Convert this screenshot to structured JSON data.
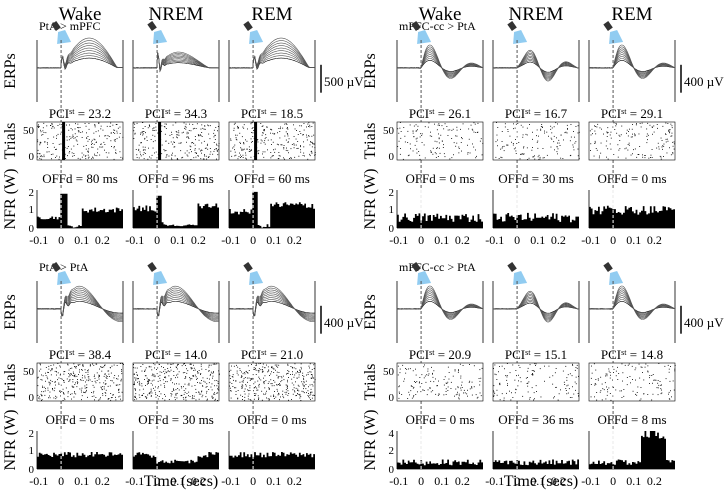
{
  "states": [
    "Wake",
    "NREM",
    "REM"
  ],
  "row_labels": {
    "erps": "ERPs",
    "trials": "Trials",
    "nfr": "NFR (W)"
  },
  "time_axis": {
    "label": "Time (secs)",
    "ticks": [
      "-0.1",
      "0",
      "0.1",
      "0.2"
    ]
  },
  "panels": [
    {
      "id": "top-left",
      "condition": "PtA > mPFC",
      "scale_bar": "500 µV",
      "pci": [
        "23.2",
        "34.3",
        "18.5"
      ],
      "offd": [
        "80 ms",
        "96 ms",
        "60 ms"
      ],
      "trials_ticks": [
        "50",
        "0"
      ],
      "nfr_ticks": [
        "2",
        "1",
        "0"
      ]
    },
    {
      "id": "top-right",
      "condition": "mPFC-cc > PtA",
      "scale_bar": "400 µV",
      "pci": [
        "26.1",
        "16.7",
        "29.1"
      ],
      "offd": [
        "0 ms",
        "30 ms",
        "0 ms"
      ],
      "trials_ticks": [
        "50",
        "0"
      ],
      "nfr_ticks": [
        "2",
        "1",
        "0"
      ]
    },
    {
      "id": "bottom-left",
      "condition": "PtA > PtA",
      "scale_bar": "400 µV",
      "pci": [
        "38.4",
        "14.0",
        "21.0"
      ],
      "offd": [
        "0 ms",
        "30 ms",
        "0 ms"
      ],
      "trials_ticks": [
        "50",
        "0"
      ],
      "nfr_ticks": [
        "2",
        "1",
        "0"
      ]
    },
    {
      "id": "bottom-right",
      "condition": "mPFC-cc > PtA",
      "scale_bar": "400 µV",
      "pci": [
        "20.9",
        "15.1",
        "14.8"
      ],
      "offd": [
        "0 ms",
        "36 ms",
        "8 ms"
      ],
      "trials_ticks": [
        "50",
        "0"
      ],
      "nfr_ticks": [
        "4",
        "2",
        "0"
      ]
    }
  ],
  "labels": {
    "pci_prefix": "PCI",
    "pci_sup": "st",
    "offd_prefix": "OFFd = "
  },
  "colors": {
    "ink": "#000000",
    "light": "#7ec3ee",
    "onset": "#555555"
  }
}
